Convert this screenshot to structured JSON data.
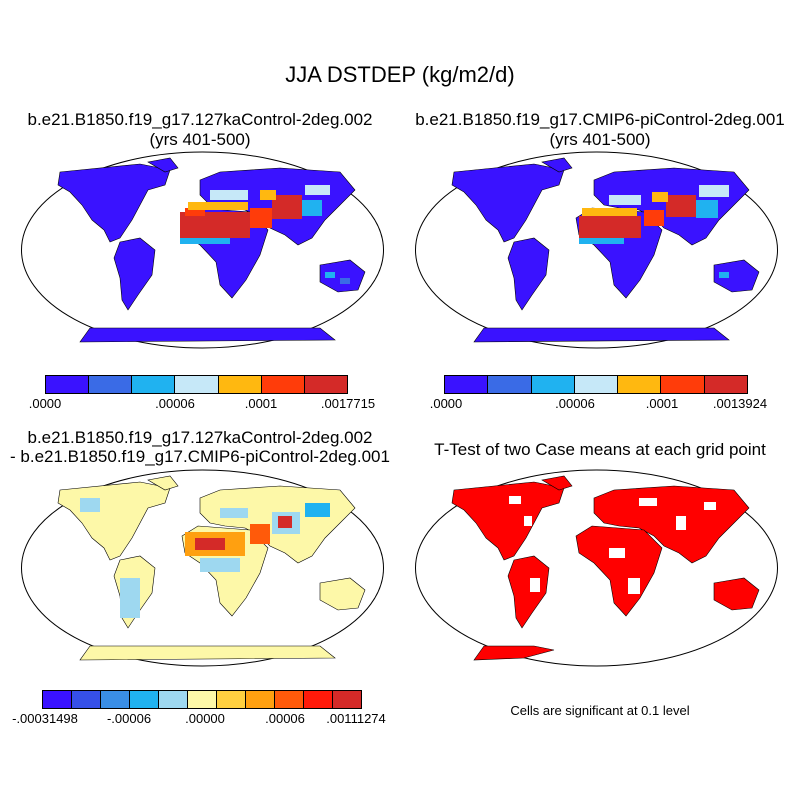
{
  "main_title": "JJA DSTDEP (kg/m2/d)",
  "panels": {
    "top_left": {
      "title_line1": "b.e21.B1850.f19_g17.127kaControl-2deg.002",
      "title_line2": "(yrs 401-500)",
      "colorbar": {
        "colors": [
          "#3a12ff",
          "#3a6be6",
          "#20b2f0",
          "#c6e8f8",
          "#ffb810",
          "#ff3c0a",
          "#d42a28"
        ],
        "labels": [
          ".0000",
          ".00006",
          ".0001",
          ".0017715"
        ]
      }
    },
    "top_right": {
      "title_line1": "b.e21.B1850.f19_g17.CMIP6-piControl-2deg.001",
      "title_line2": "(yrs 401-500)",
      "colorbar": {
        "colors": [
          "#3a12ff",
          "#3a6be6",
          "#20b2f0",
          "#c6e8f8",
          "#ffb810",
          "#ff3c0a",
          "#d42a28"
        ],
        "labels": [
          ".0000",
          ".00006",
          ".0001",
          ".0013924"
        ]
      }
    },
    "bottom_left": {
      "title_line1": "b.e21.B1850.f19_g17.127kaControl-2deg.002",
      "title_line2": "- b.e21.B1850.f19_g17.CMIP6-piControl-2deg.001",
      "colorbar": {
        "colors": [
          "#3a12ff",
          "#3650e8",
          "#3a8ee6",
          "#20b2f0",
          "#9ed8f0",
          "#fdf8a8",
          "#ffd040",
          "#ffa010",
          "#ff5a0a",
          "#ff1a0a",
          "#d42a28"
        ],
        "labels": [
          "-.00031498",
          "-.00006",
          ".00000",
          ".00006",
          ".00111274"
        ]
      }
    },
    "bottom_right": {
      "title": "T-Test of two Case means at each grid point",
      "note": "Cells are significant at 0.1 level"
    }
  },
  "colors": {
    "ocean": "#ffffff",
    "land_base": "#3a12ff",
    "diff_base": "#fdf8a8",
    "significant": "#ff0000"
  }
}
